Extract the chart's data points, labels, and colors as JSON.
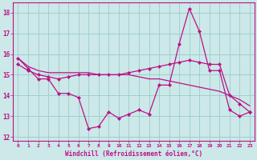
{
  "background_color": "#cce8e8",
  "grid_color": "#99cccc",
  "line_color": "#bb1188",
  "x_values": [
    0,
    1,
    2,
    3,
    4,
    5,
    6,
    7,
    8,
    9,
    10,
    11,
    12,
    13,
    14,
    15,
    16,
    17,
    18,
    19,
    20,
    21,
    22,
    23
  ],
  "line1": [
    15.8,
    15.3,
    14.8,
    14.8,
    14.1,
    14.1,
    13.9,
    12.4,
    12.5,
    13.2,
    12.9,
    13.1,
    13.3,
    13.1,
    14.5,
    14.5,
    16.5,
    18.2,
    17.1,
    15.2,
    15.2,
    13.3,
    13.0,
    13.2
  ],
  "line2": [
    15.5,
    15.2,
    15.0,
    14.9,
    14.8,
    14.9,
    15.0,
    15.0,
    15.0,
    15.0,
    15.0,
    15.1,
    15.2,
    15.3,
    15.4,
    15.5,
    15.6,
    15.7,
    15.6,
    15.5,
    15.5,
    14.0,
    13.6,
    13.2
  ],
  "line3": [
    15.8,
    15.4,
    15.2,
    15.1,
    15.1,
    15.1,
    15.1,
    15.1,
    15.0,
    15.0,
    15.0,
    15.0,
    14.9,
    14.8,
    14.8,
    14.7,
    14.6,
    14.5,
    14.4,
    14.3,
    14.2,
    14.0,
    13.8,
    13.5
  ],
  "xlabel": "Windchill (Refroidissement éolien,°C)",
  "ylim": [
    11.8,
    18.5
  ],
  "xlim": [
    -0.5,
    23.5
  ],
  "yticks": [
    12,
    13,
    14,
    15,
    16,
    17,
    18
  ],
  "xticks": [
    0,
    1,
    2,
    3,
    4,
    5,
    6,
    7,
    8,
    9,
    10,
    11,
    12,
    13,
    14,
    15,
    16,
    17,
    18,
    19,
    20,
    21,
    22,
    23
  ]
}
